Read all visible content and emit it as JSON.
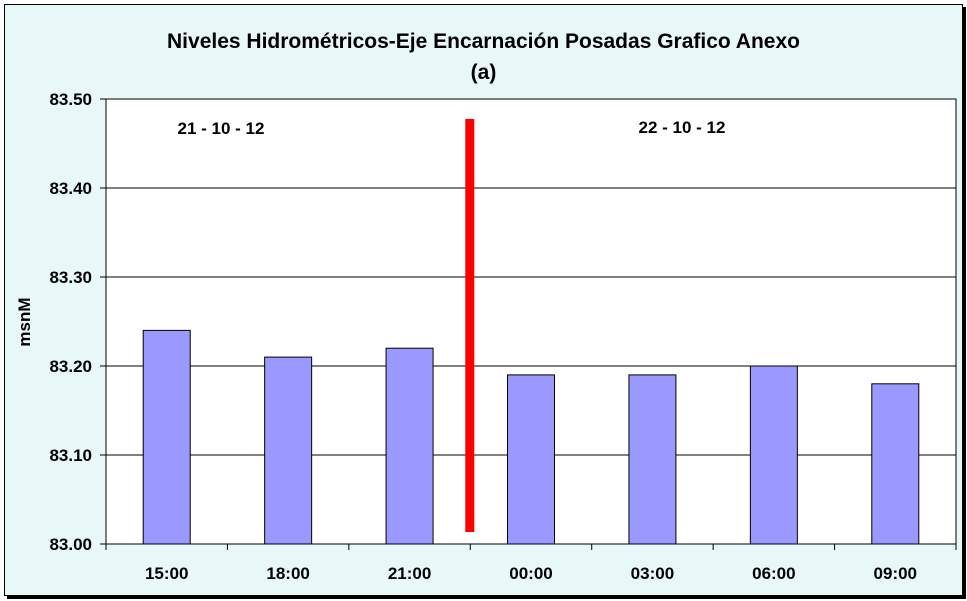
{
  "chart_data": {
    "type": "bar",
    "title_line1": "Niveles Hidrométricos-Eje Encarnación Posadas Grafico Anexo",
    "title_line2": "(a)",
    "ylabel": "msnM",
    "xlabel": "",
    "categories": [
      "15:00",
      "18:00",
      "21:00",
      "00:00",
      "03:00",
      "06:00",
      "09:00"
    ],
    "values": [
      83.24,
      83.21,
      83.22,
      83.19,
      83.19,
      83.2,
      83.18
    ],
    "ylim": [
      83.0,
      83.5
    ],
    "yticks": [
      "83.00",
      "83.10",
      "83.20",
      "83.30",
      "83.40",
      "83.50"
    ],
    "grid": true,
    "annotations": [
      "21 - 10 - 12",
      "22 - 10 - 12"
    ],
    "colors": {
      "bar": "#9999ff",
      "divider": "#ff0000",
      "background": "#e8f7f7",
      "plot": "#ffffff"
    }
  }
}
